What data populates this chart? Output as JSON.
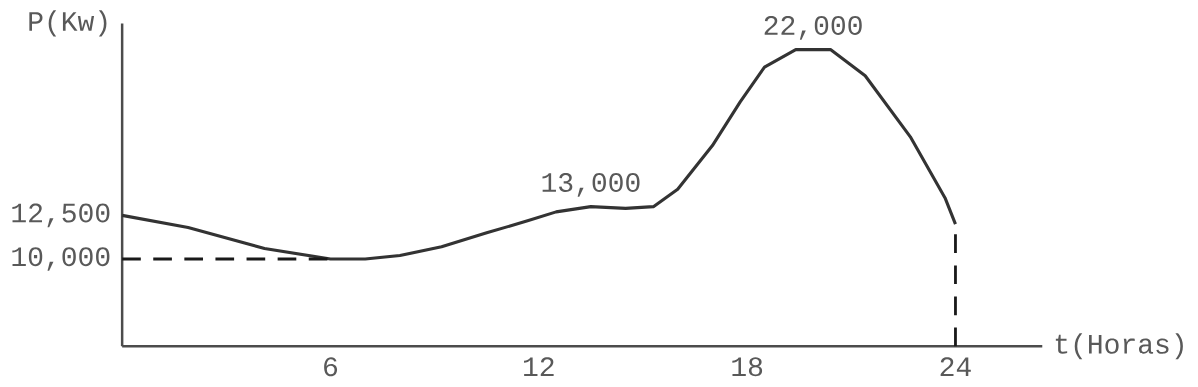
{
  "chart_data": {
    "type": "line",
    "xlabel": "t(Horas)",
    "ylabel": "P(Kw)",
    "x": [
      0,
      1.9,
      4.1,
      6,
      7,
      8,
      9.2,
      10.5,
      11.7,
      12.5,
      13.5,
      14.5,
      15.3,
      16,
      17,
      17.8,
      18.5,
      19.4,
      20.4,
      21.4,
      22.7,
      23.7,
      24
    ],
    "series": [
      {
        "color": "#333333",
        "values": [
          12500,
          11800,
          10600,
          10000,
          10000,
          10200,
          10700,
          11500,
          12200,
          12700,
          13000,
          12900,
          13000,
          14000,
          16500,
          19000,
          21000,
          22000,
          22000,
          20500,
          17000,
          13500,
          12000
        ]
      }
    ],
    "xlim": [
      0,
      26.5
    ],
    "ylim": [
      5000,
      23500
    ],
    "xticks": [
      6,
      12,
      18,
      24
    ],
    "yticks": [
      {
        "value": 10000,
        "label": "10,000"
      },
      {
        "value": 12500,
        "label": "12,500"
      }
    ],
    "ref_lines": [
      {
        "axis": "y",
        "value": 10000,
        "line_style": "dashed"
      },
      {
        "axis": "x",
        "value": 24,
        "line_style": "dashed"
      }
    ],
    "annotations": [
      {
        "text": "13,000",
        "x": 13.5,
        "y": 13000
      },
      {
        "text": "22,000",
        "x": 19.9,
        "y": 22000
      }
    ],
    "grid": false,
    "marker": "none",
    "line_style": "solid"
  }
}
